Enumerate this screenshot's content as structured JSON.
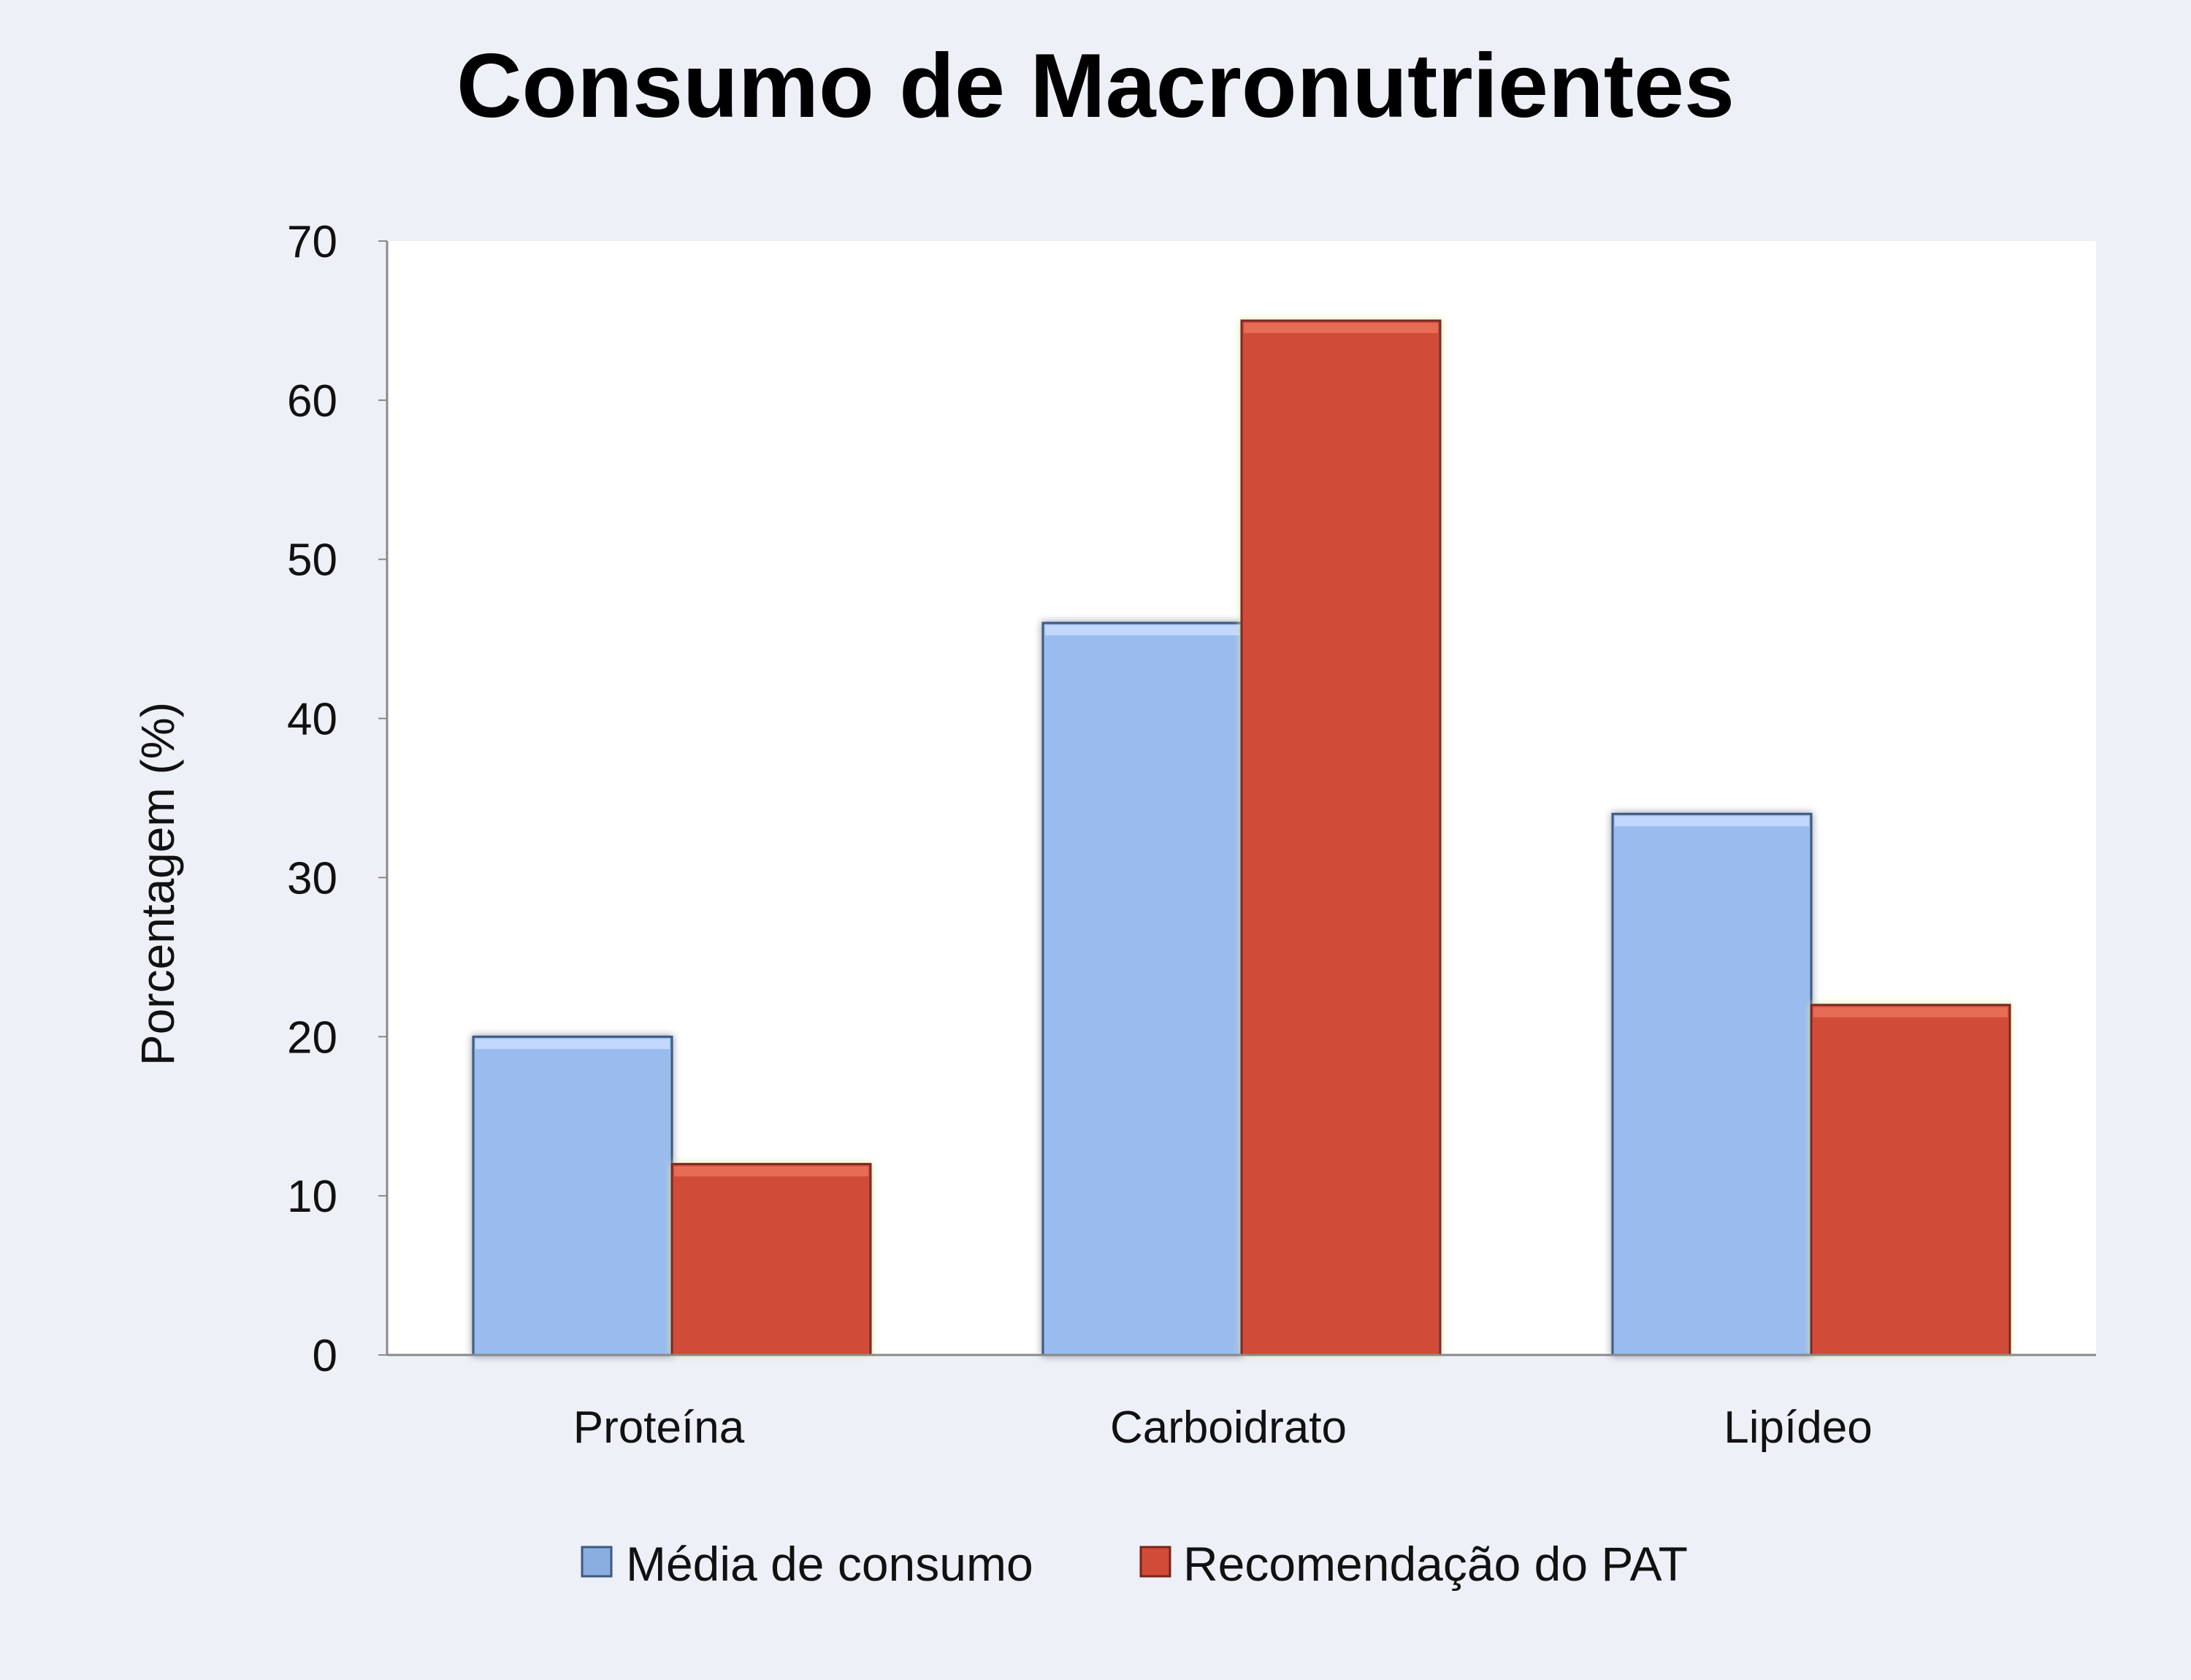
{
  "chart_data": {
    "type": "bar",
    "title": "Consumo de Macronutrientes",
    "xlabel": "",
    "ylabel": "Porcentagem (%)",
    "categories": [
      "Proteína",
      "Carboidrato",
      "Lipídeo"
    ],
    "series": [
      {
        "name": "Média de consumo",
        "values": [
          20,
          46,
          34
        ],
        "color": "#99bbee"
      },
      {
        "name": "Recomendação do PAT",
        "values": [
          12,
          65,
          22
        ],
        "color": "#d04b38"
      }
    ],
    "ylim": [
      0,
      70
    ],
    "yticks": [
      0,
      10,
      20,
      30,
      40,
      50,
      60,
      70
    ],
    "grid": false,
    "legend_position": "bottom",
    "background_color": "#eef0f8",
    "plot_background_color": "#ffffff"
  }
}
